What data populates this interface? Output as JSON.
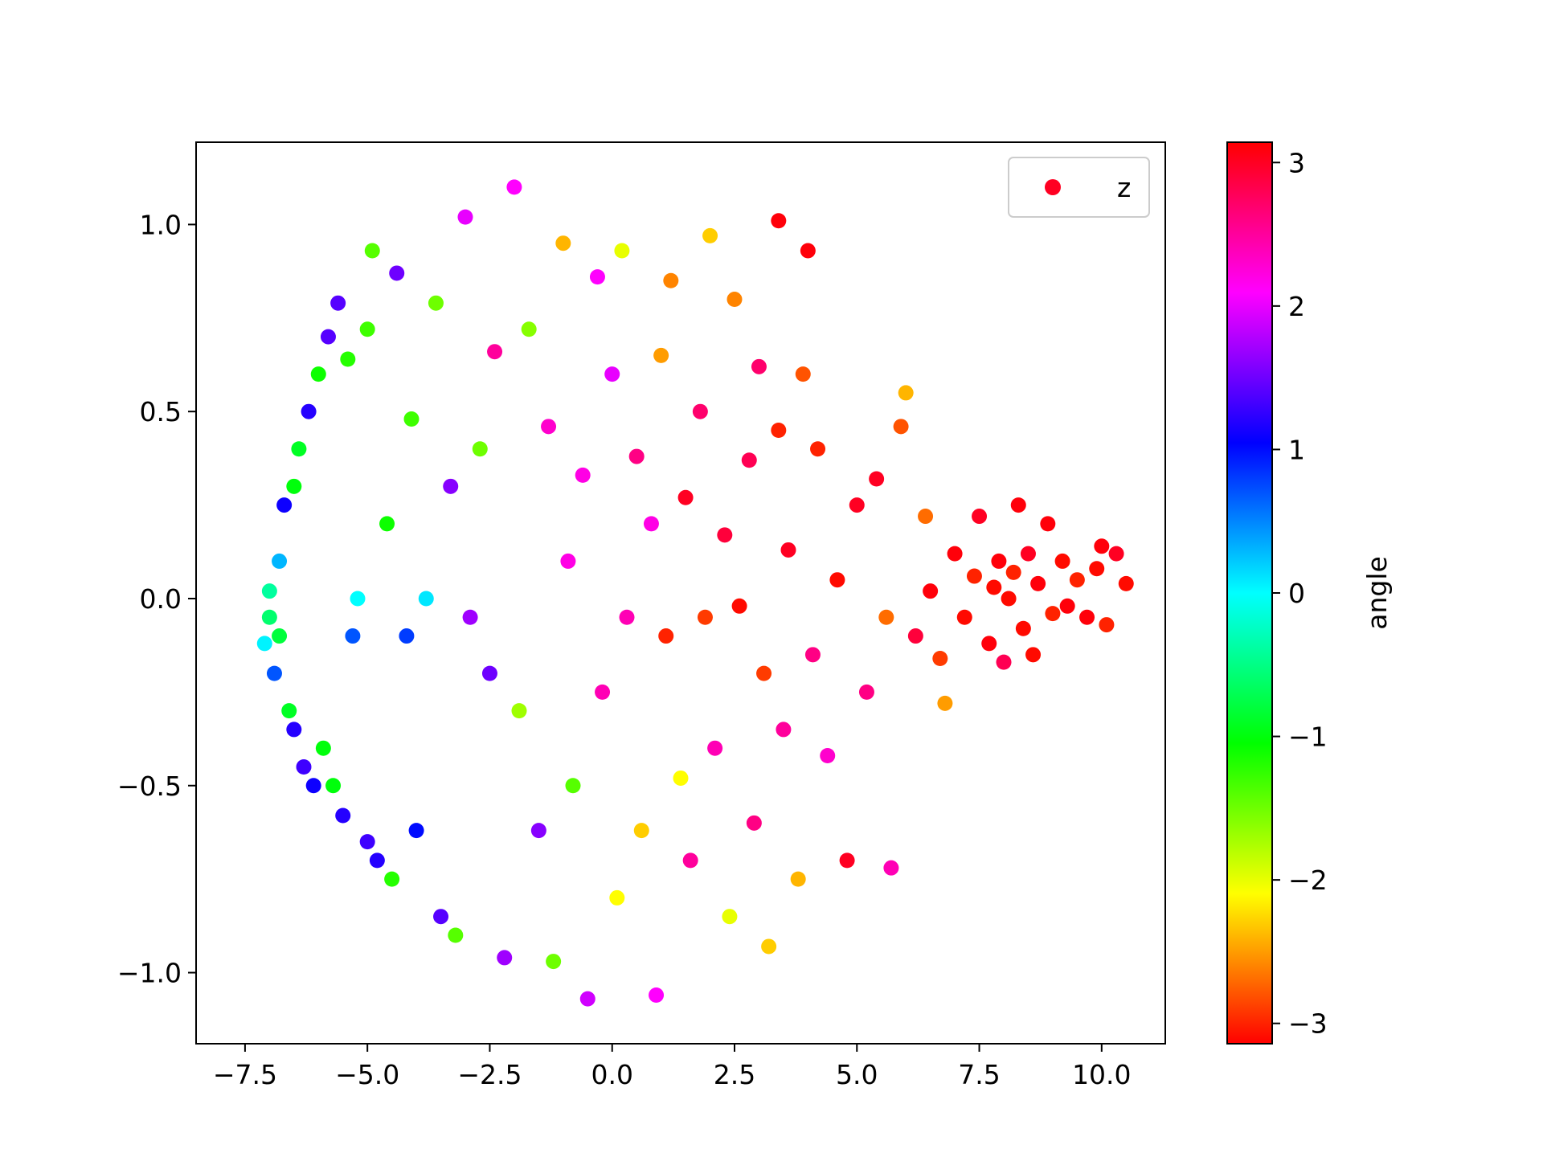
{
  "chart_data": {
    "type": "scatter",
    "title": "",
    "xlabel": "",
    "ylabel": "",
    "xlim": [
      -8.5,
      11.3
    ],
    "ylim": [
      -1.19,
      1.22
    ],
    "x_ticks": [
      -7.5,
      -5.0,
      -2.5,
      0.0,
      2.5,
      5.0,
      7.5,
      10.0
    ],
    "x_tick_labels": [
      "−7.5",
      "−5.0",
      "−2.5",
      "0.0",
      "2.5",
      "5.0",
      "7.5",
      "10.0"
    ],
    "y_ticks": [
      -1.0,
      -0.5,
      0.0,
      0.5,
      1.0
    ],
    "y_tick_labels": [
      "−1.0",
      "−0.5",
      "0.0",
      "0.5",
      "1.0"
    ],
    "grid": false,
    "legend": {
      "entries": [
        "z"
      ],
      "placement": "top-right",
      "marker_color": "#ff0022"
    },
    "colorbar": {
      "label": "angle",
      "colormap": "hsv",
      "range": [
        -3.14159,
        3.14159
      ],
      "ticks": [
        -3,
        -2,
        -1,
        0,
        1,
        2,
        3
      ],
      "tick_labels": [
        "−3",
        "−2",
        "−1",
        "0",
        "1",
        "2",
        "3"
      ]
    },
    "series": [
      {
        "name": "z",
        "color_by": "angle",
        "points": [
          {
            "x": -7.1,
            "y": -0.12,
            "c": 0.05
          },
          {
            "x": -7.0,
            "y": -0.05,
            "c": -0.6
          },
          {
            "x": -7.0,
            "y": 0.02,
            "c": -0.4
          },
          {
            "x": -6.9,
            "y": -0.2,
            "c": 0.7
          },
          {
            "x": -6.8,
            "y": 0.1,
            "c": 0.3
          },
          {
            "x": -6.8,
            "y": -0.1,
            "c": -0.8
          },
          {
            "x": -6.7,
            "y": 0.25,
            "c": 1.1
          },
          {
            "x": -6.6,
            "y": -0.3,
            "c": -0.9
          },
          {
            "x": -6.5,
            "y": 0.3,
            "c": -1.0
          },
          {
            "x": -6.5,
            "y": -0.35,
            "c": 1.2
          },
          {
            "x": -6.4,
            "y": 0.4,
            "c": -0.9
          },
          {
            "x": -6.3,
            "y": -0.45,
            "c": 1.3
          },
          {
            "x": -6.2,
            "y": 0.5,
            "c": 1.2
          },
          {
            "x": -6.1,
            "y": -0.5,
            "c": 1.1
          },
          {
            "x": -6.0,
            "y": 0.6,
            "c": -1.1
          },
          {
            "x": -5.9,
            "y": -0.4,
            "c": -1.0
          },
          {
            "x": -5.8,
            "y": 0.7,
            "c": 1.4
          },
          {
            "x": -5.7,
            "y": -0.5,
            "c": -1.0
          },
          {
            "x": -5.6,
            "y": 0.79,
            "c": 1.4
          },
          {
            "x": -5.5,
            "y": -0.58,
            "c": 1.2
          },
          {
            "x": -5.4,
            "y": 0.64,
            "c": -1.2
          },
          {
            "x": -5.3,
            "y": -0.1,
            "c": 0.7
          },
          {
            "x": -5.2,
            "y": 0.0,
            "c": 0.0
          },
          {
            "x": -5.0,
            "y": 0.72,
            "c": -1.3
          },
          {
            "x": -5.0,
            "y": -0.65,
            "c": 1.3
          },
          {
            "x": -4.9,
            "y": 0.93,
            "c": -1.4
          },
          {
            "x": -4.8,
            "y": -0.7,
            "c": 1.2
          },
          {
            "x": -4.6,
            "y": 0.2,
            "c": -1.1
          },
          {
            "x": -4.5,
            "y": -0.75,
            "c": -1.2
          },
          {
            "x": -4.4,
            "y": 0.87,
            "c": 1.5
          },
          {
            "x": -4.2,
            "y": -0.1,
            "c": 0.8
          },
          {
            "x": -4.1,
            "y": 0.48,
            "c": -1.3
          },
          {
            "x": -4.0,
            "y": -0.62,
            "c": 1.0
          },
          {
            "x": -3.8,
            "y": 0.0,
            "c": 0.1
          },
          {
            "x": -3.6,
            "y": 0.79,
            "c": -1.5
          },
          {
            "x": -3.5,
            "y": -0.85,
            "c": 1.4
          },
          {
            "x": -3.3,
            "y": 0.3,
            "c": 1.6
          },
          {
            "x": -3.2,
            "y": -0.9,
            "c": -1.4
          },
          {
            "x": -3.0,
            "y": 1.02,
            "c": 2.0
          },
          {
            "x": -2.9,
            "y": -0.05,
            "c": 1.7
          },
          {
            "x": -2.7,
            "y": 0.4,
            "c": -1.5
          },
          {
            "x": -2.5,
            "y": -0.2,
            "c": 1.5
          },
          {
            "x": -2.4,
            "y": 0.66,
            "c": 2.5
          },
          {
            "x": -2.2,
            "y": -0.96,
            "c": 1.7
          },
          {
            "x": -2.0,
            "y": 1.1,
            "c": 2.1
          },
          {
            "x": -1.9,
            "y": -0.3,
            "c": -1.7
          },
          {
            "x": -1.7,
            "y": 0.72,
            "c": -1.6
          },
          {
            "x": -1.5,
            "y": -0.62,
            "c": 1.6
          },
          {
            "x": -1.3,
            "y": 0.46,
            "c": 2.3
          },
          {
            "x": -1.2,
            "y": -0.97,
            "c": -1.5
          },
          {
            "x": -1.0,
            "y": 0.95,
            "c": -2.4
          },
          {
            "x": -0.9,
            "y": 0.1,
            "c": 2.2
          },
          {
            "x": -0.8,
            "y": -0.5,
            "c": -1.4
          },
          {
            "x": -0.6,
            "y": 0.33,
            "c": 2.2
          },
          {
            "x": -0.5,
            "y": -1.07,
            "c": 1.9
          },
          {
            "x": -0.3,
            "y": 0.86,
            "c": 2.1
          },
          {
            "x": -0.2,
            "y": -0.25,
            "c": 2.4
          },
          {
            "x": 0.0,
            "y": 0.6,
            "c": 2.0
          },
          {
            "x": 0.1,
            "y": -0.8,
            "c": -2.1
          },
          {
            "x": 0.2,
            "y": 0.93,
            "c": -2.0
          },
          {
            "x": 0.3,
            "y": -0.05,
            "c": 2.4
          },
          {
            "x": 0.5,
            "y": 0.38,
            "c": 2.6
          },
          {
            "x": 0.6,
            "y": -0.62,
            "c": -2.3
          },
          {
            "x": 0.8,
            "y": 0.2,
            "c": 2.2
          },
          {
            "x": 0.9,
            "y": -1.06,
            "c": 2.1
          },
          {
            "x": 1.0,
            "y": 0.65,
            "c": -2.5
          },
          {
            "x": 1.1,
            "y": -0.1,
            "c": -3.0
          },
          {
            "x": 1.2,
            "y": 0.85,
            "c": -2.6
          },
          {
            "x": 1.4,
            "y": -0.48,
            "c": -2.1
          },
          {
            "x": 1.5,
            "y": 0.27,
            "c": 3.0
          },
          {
            "x": 1.6,
            "y": -0.7,
            "c": 2.5
          },
          {
            "x": 1.8,
            "y": 0.5,
            "c": 2.7
          },
          {
            "x": 1.9,
            "y": -0.05,
            "c": -2.9
          },
          {
            "x": 2.0,
            "y": 0.97,
            "c": -2.3
          },
          {
            "x": 2.1,
            "y": -0.4,
            "c": 2.4
          },
          {
            "x": 2.3,
            "y": 0.17,
            "c": 2.9
          },
          {
            "x": 2.4,
            "y": -0.85,
            "c": -2.0
          },
          {
            "x": 2.5,
            "y": 0.8,
            "c": -2.6
          },
          {
            "x": 2.6,
            "y": -0.02,
            "c": -3.1
          },
          {
            "x": 2.8,
            "y": 0.37,
            "c": 2.8
          },
          {
            "x": 2.9,
            "y": -0.6,
            "c": 2.6
          },
          {
            "x": 3.0,
            "y": 0.62,
            "c": 2.7
          },
          {
            "x": 3.1,
            "y": -0.2,
            "c": -2.9
          },
          {
            "x": 3.2,
            "y": -0.93,
            "c": -2.3
          },
          {
            "x": 3.4,
            "y": 0.45,
            "c": -3.0
          },
          {
            "x": 3.4,
            "y": 1.01,
            "c": 3.1
          },
          {
            "x": 3.5,
            "y": -0.35,
            "c": 2.5
          },
          {
            "x": 3.6,
            "y": 0.13,
            "c": 3.0
          },
          {
            "x": 3.8,
            "y": -0.75,
            "c": -2.4
          },
          {
            "x": 3.9,
            "y": 0.6,
            "c": -2.8
          },
          {
            "x": 4.0,
            "y": 0.93,
            "c": 3.1
          },
          {
            "x": 4.1,
            "y": -0.15,
            "c": 2.6
          },
          {
            "x": 4.2,
            "y": 0.4,
            "c": -3.0
          },
          {
            "x": 4.4,
            "y": -0.42,
            "c": 2.3
          },
          {
            "x": 4.6,
            "y": 0.05,
            "c": -3.1
          },
          {
            "x": 4.8,
            "y": -0.7,
            "c": 3.0
          },
          {
            "x": 5.0,
            "y": 0.25,
            "c": 3.0
          },
          {
            "x": 5.2,
            "y": -0.25,
            "c": 2.6
          },
          {
            "x": 5.4,
            "y": 0.32,
            "c": 3.0
          },
          {
            "x": 5.6,
            "y": -0.05,
            "c": -2.7
          },
          {
            "x": 5.7,
            "y": -0.72,
            "c": 2.4
          },
          {
            "x": 5.9,
            "y": 0.46,
            "c": -2.8
          },
          {
            "x": 6.0,
            "y": 0.55,
            "c": -2.4
          },
          {
            "x": 6.2,
            "y": -0.1,
            "c": 2.9
          },
          {
            "x": 6.4,
            "y": 0.22,
            "c": -2.7
          },
          {
            "x": 6.5,
            "y": 0.02,
            "c": 3.1
          },
          {
            "x": 6.7,
            "y": -0.16,
            "c": -2.9
          },
          {
            "x": 6.8,
            "y": -0.28,
            "c": -2.5
          },
          {
            "x": 7.0,
            "y": 0.12,
            "c": 3.1
          },
          {
            "x": 7.2,
            "y": -0.05,
            "c": -3.1
          },
          {
            "x": 7.4,
            "y": 0.06,
            "c": -3.0
          },
          {
            "x": 7.5,
            "y": 0.22,
            "c": 3.0
          },
          {
            "x": 7.7,
            "y": -0.12,
            "c": 3.1
          },
          {
            "x": 7.8,
            "y": 0.03,
            "c": -3.1
          },
          {
            "x": 7.9,
            "y": 0.1,
            "c": 3.1
          },
          {
            "x": 8.0,
            "y": -0.17,
            "c": 2.8
          },
          {
            "x": 8.1,
            "y": 0.0,
            "c": -3.1
          },
          {
            "x": 8.2,
            "y": 0.07,
            "c": -3.0
          },
          {
            "x": 8.3,
            "y": 0.25,
            "c": 3.1
          },
          {
            "x": 8.4,
            "y": -0.08,
            "c": -3.1
          },
          {
            "x": 8.5,
            "y": 0.12,
            "c": 3.0
          },
          {
            "x": 8.6,
            "y": -0.15,
            "c": -3.1
          },
          {
            "x": 8.7,
            "y": 0.04,
            "c": 3.1
          },
          {
            "x": 8.9,
            "y": 0.2,
            "c": 3.1
          },
          {
            "x": 9.0,
            "y": -0.04,
            "c": -3.0
          },
          {
            "x": 9.2,
            "y": 0.1,
            "c": -3.1
          },
          {
            "x": 9.3,
            "y": -0.02,
            "c": 3.1
          },
          {
            "x": 9.5,
            "y": 0.05,
            "c": -3.0
          },
          {
            "x": 9.7,
            "y": -0.05,
            "c": 3.1
          },
          {
            "x": 9.9,
            "y": 0.08,
            "c": -3.1
          },
          {
            "x": 10.0,
            "y": 0.14,
            "c": 3.1
          },
          {
            "x": 10.1,
            "y": -0.07,
            "c": -3.0
          },
          {
            "x": 10.3,
            "y": 0.12,
            "c": 3.0
          },
          {
            "x": 10.5,
            "y": 0.04,
            "c": -3.1
          }
        ]
      }
    ]
  }
}
